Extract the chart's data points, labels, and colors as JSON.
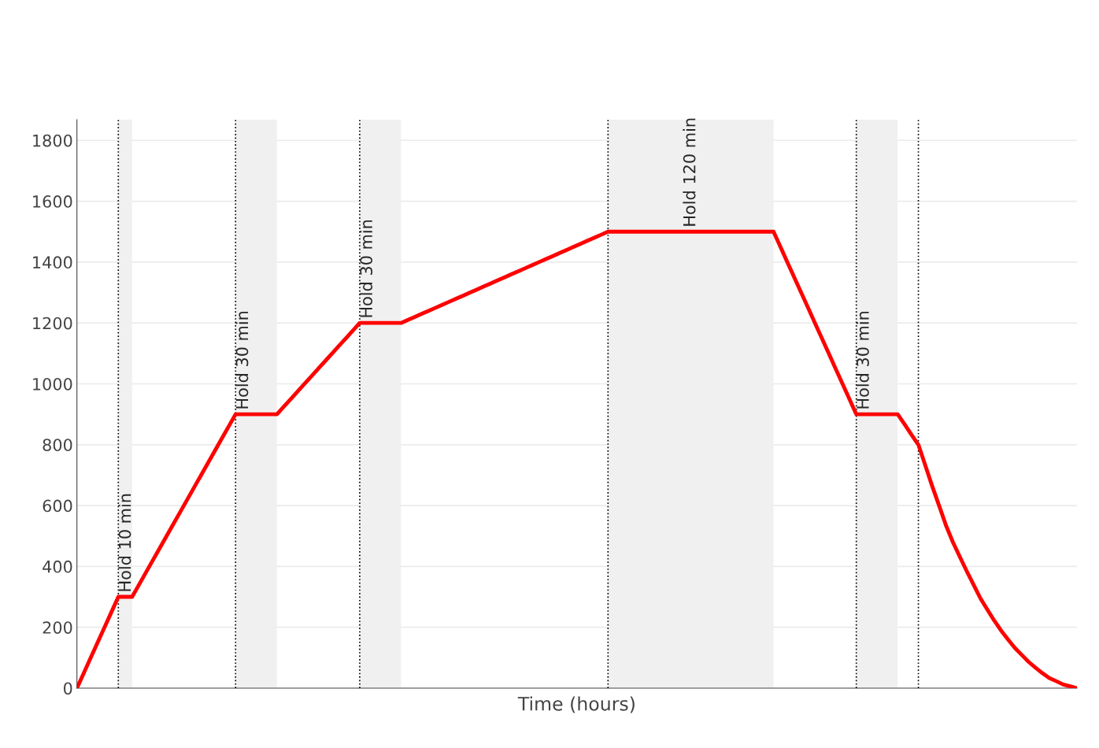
{
  "chart_data": {
    "type": "line",
    "xlabel": "Time (hours)",
    "categories": [
      null,
      null,
      null,
      null,
      null,
      null,
      null,
      null,
      null,
      null,
      null,
      null,
      null,
      null,
      null,
      null,
      null,
      null,
      null,
      null,
      null,
      null,
      null,
      null,
      null,
      null,
      null,
      null,
      null,
      null,
      null,
      null,
      null,
      null,
      null,
      null,
      null,
      null,
      null,
      null,
      null,
      null,
      null,
      null,
      null,
      null,
      null,
      null,
      null,
      null,
      null,
      null,
      null,
      null,
      null,
      null,
      null,
      null,
      null,
      null,
      null,
      null,
      null,
      null,
      null,
      null,
      null,
      null,
      null,
      null,
      null,
      null,
      null,
      null,
      null,
      null,
      null,
      null,
      null,
      null,
      null,
      null,
      null,
      null,
      null,
      null,
      null,
      null,
      null,
      null,
      null,
      null,
      null,
      null,
      null,
      null,
      null,
      null,
      null,
      null,
      null,
      null,
      null,
      null,
      null,
      null,
      null,
      null,
      null,
      null,
      null,
      null,
      null,
      null,
      null,
      null,
      null,
      null,
      null,
      null,
      null,
      null,
      null,
      null,
      null,
      null,
      null,
      null,
      null,
      null,
      null,
      null,
      null,
      null,
      null,
      null,
      null,
      null,
      null,
      null,
      null,
      null,
      null,
      null,
      null,
      null
    ],
    "series": [
      {
        "color": "#ff0000",
        "values": [
          0,
          50,
          100,
          150,
          200,
          250,
          300,
          300,
          300,
          340,
          380,
          420,
          460,
          500,
          540,
          580,
          620,
          660,
          700,
          740,
          780,
          820,
          860,
          900,
          900,
          900,
          900,
          900,
          900,
          900,
          925,
          950,
          975,
          1000,
          1025,
          1050,
          1075,
          1100,
          1125,
          1150,
          1175,
          1200,
          1200,
          1200,
          1200,
          1200,
          1200,
          1200,
          1210,
          1220,
          1230,
          1240,
          1250,
          1260,
          1270,
          1280,
          1290,
          1300,
          1310,
          1320,
          1330,
          1340,
          1350,
          1360,
          1370,
          1380,
          1390,
          1400,
          1410,
          1420,
          1430,
          1440,
          1450,
          1460,
          1470,
          1480,
          1490,
          1500,
          1500,
          1500,
          1500,
          1500,
          1500,
          1500,
          1500,
          1500,
          1500,
          1500,
          1500,
          1500,
          1500,
          1500,
          1500,
          1500,
          1500,
          1500,
          1500,
          1500,
          1500,
          1500,
          1500,
          1500,
          1450,
          1400,
          1350,
          1300,
          1250,
          1200,
          1150,
          1100,
          1050,
          1000,
          950,
          900,
          900,
          900,
          900,
          900,
          900,
          900,
          867,
          833,
          800,
          732,
          664,
          600,
          535,
          480,
          432,
          385,
          340,
          295,
          258,
          222,
          189,
          160,
          132,
          109,
          86,
          67,
          49,
          33,
          23,
          12,
          6,
          0
        ]
      }
    ],
    "ylim": [
      0,
      1868
    ],
    "yticks": [
      0,
      200,
      400,
      600,
      800,
      1000,
      1200,
      1400,
      1600,
      1800
    ],
    "tick_labels": "y",
    "grid": "y",
    "marker": "none",
    "line_style": "solid",
    "annotations": [
      "Hold 10 min",
      "Hold 30 min",
      "Hold 30 min",
      "Hold 120 min",
      "Hold 30 min"
    ]
  }
}
